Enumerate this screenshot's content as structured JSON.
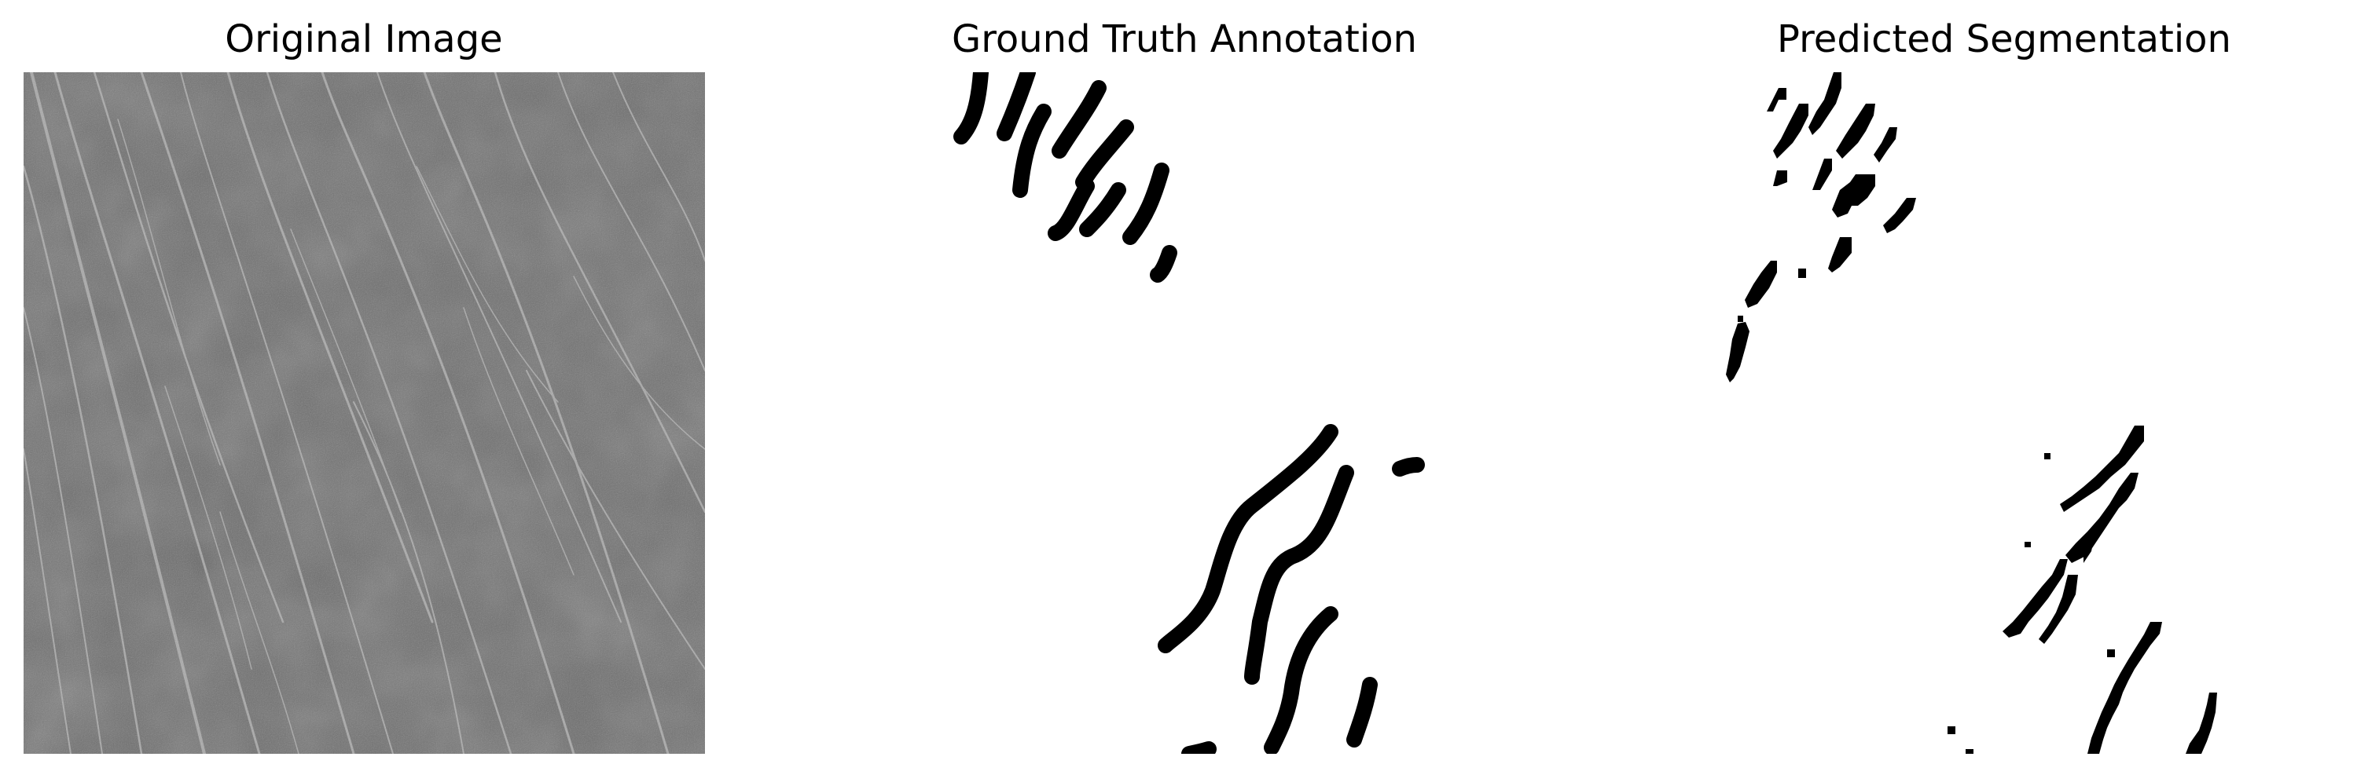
{
  "figure": {
    "panels": [
      {
        "title": "Original Image"
      },
      {
        "title": "Ground Truth Annotation"
      },
      {
        "title": "Predicted Segmentation"
      }
    ]
  },
  "colors": {
    "background": "#ffffff",
    "image_base": "#6b6b6b",
    "crack_light": "#b8b8b8",
    "mask_foreground": "#000000"
  }
}
